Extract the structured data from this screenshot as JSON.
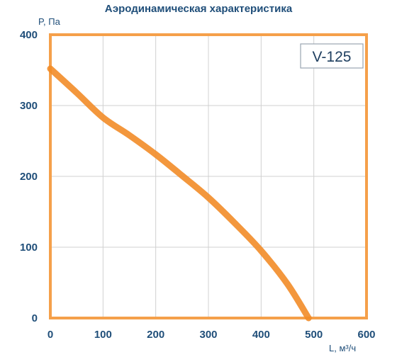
{
  "chart_data": {
    "type": "line",
    "title": "Аэродинамическая характеристика",
    "ylabel": "P, Па",
    "xlabel": "L, м³/ч",
    "xlim": [
      0,
      600
    ],
    "ylim": [
      0,
      400
    ],
    "x_ticks": [
      "0",
      "100",
      "200",
      "300",
      "400",
      "500",
      "600"
    ],
    "y_ticks": [
      "0",
      "100",
      "200",
      "300",
      "400"
    ],
    "grid": true,
    "annotation": "V-125",
    "series": [
      {
        "color": "#f28c28",
        "x": [
          0,
          50,
          100,
          150,
          200,
          250,
          300,
          350,
          400,
          450,
          490
        ],
        "y": [
          352,
          318,
          283,
          258,
          231,
          201,
          170,
          134,
          95,
          48,
          0
        ]
      }
    ]
  }
}
